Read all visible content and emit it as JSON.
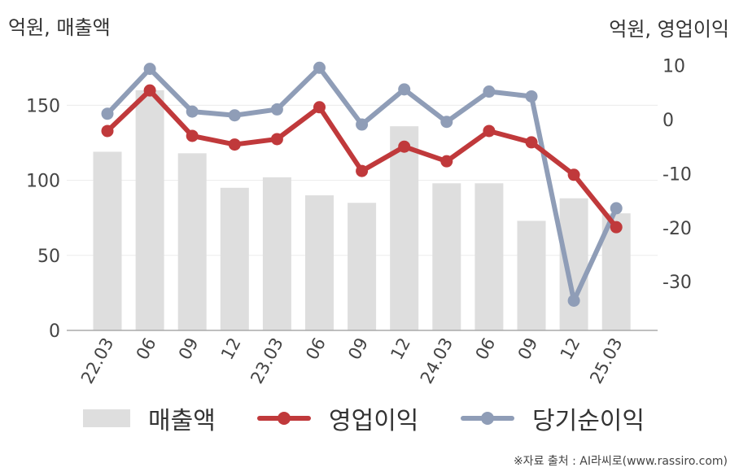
{
  "units": {
    "left": "억원, 매출액",
    "right": "억원, 영업이익"
  },
  "source": "※자료 출처 : AI라씨로(www.rassiro.com)",
  "colors": {
    "revenue": "#dedede",
    "operating": "#c0393b",
    "net": "#8f9db7",
    "grid": "#ececec",
    "axis": "#aaaaaa"
  },
  "legend": [
    {
      "label": "매출액",
      "kind": "bar",
      "color": "#dedede"
    },
    {
      "label": "영업이익",
      "kind": "line",
      "color": "#c0393b"
    },
    {
      "label": "당기순이익",
      "kind": "line",
      "color": "#8f9db7"
    }
  ],
  "chart_data": {
    "type": "bar+line",
    "categories": [
      "22.03",
      "06",
      "09",
      "12",
      "23.03",
      "06",
      "09",
      "12",
      "24.03",
      "06",
      "09",
      "12",
      "25.03"
    ],
    "left_axis": {
      "min": 0,
      "max": 180,
      "ticks": [
        0,
        50,
        100,
        150
      ]
    },
    "right_axis": {
      "min": -39,
      "max": 11,
      "ticks": [
        -30,
        -20,
        -10,
        0,
        10
      ]
    },
    "series": [
      {
        "name": "매출액",
        "type": "bar",
        "axis": "left",
        "values": [
          119,
          160,
          118,
          95,
          102,
          90,
          85,
          136,
          98,
          98,
          73,
          88,
          78
        ]
      },
      {
        "name": "영업이익",
        "type": "line",
        "axis": "right",
        "values": [
          -2.1,
          5.4,
          -3.0,
          -4.6,
          -3.6,
          2.3,
          -9.5,
          -5.0,
          -7.7,
          -2.1,
          -4.2,
          -10.2,
          -19.9
        ]
      },
      {
        "name": "당기순이익",
        "type": "line",
        "axis": "right",
        "values": [
          1.1,
          9.4,
          1.5,
          0.8,
          1.9,
          9.6,
          -0.9,
          5.6,
          -0.4,
          5.2,
          4.3,
          -33.5,
          -16.4
        ]
      }
    ],
    "grid": true,
    "legend_position": "bottom"
  }
}
